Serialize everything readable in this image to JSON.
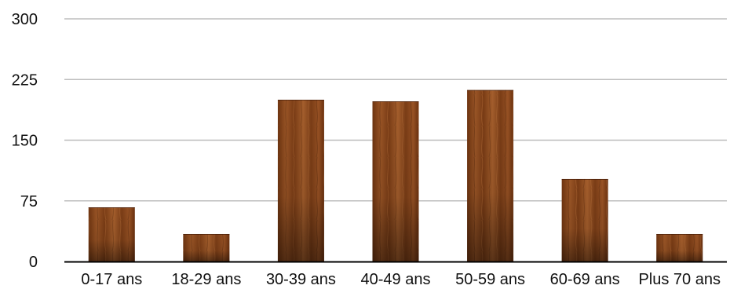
{
  "chart_data": {
    "type": "bar",
    "categories": [
      "0-17 ans",
      "18-29 ans",
      "30-39 ans",
      "40-49 ans",
      "50-59 ans",
      "60-69 ans",
      "Plus 70 ans"
    ],
    "values": [
      67,
      34,
      200,
      198,
      212,
      102,
      34
    ],
    "ylim": [
      0,
      300
    ],
    "yticks": [
      "0",
      "75",
      "150",
      "225",
      "300"
    ],
    "grid": true,
    "bar_style": "wood texture",
    "colors": {
      "bar_dark": "#5a2a0e",
      "bar_mid": "#8a4b1f",
      "bar_light": "#b06a36",
      "grid": "#bdbdbd",
      "axis": "#000000"
    }
  }
}
